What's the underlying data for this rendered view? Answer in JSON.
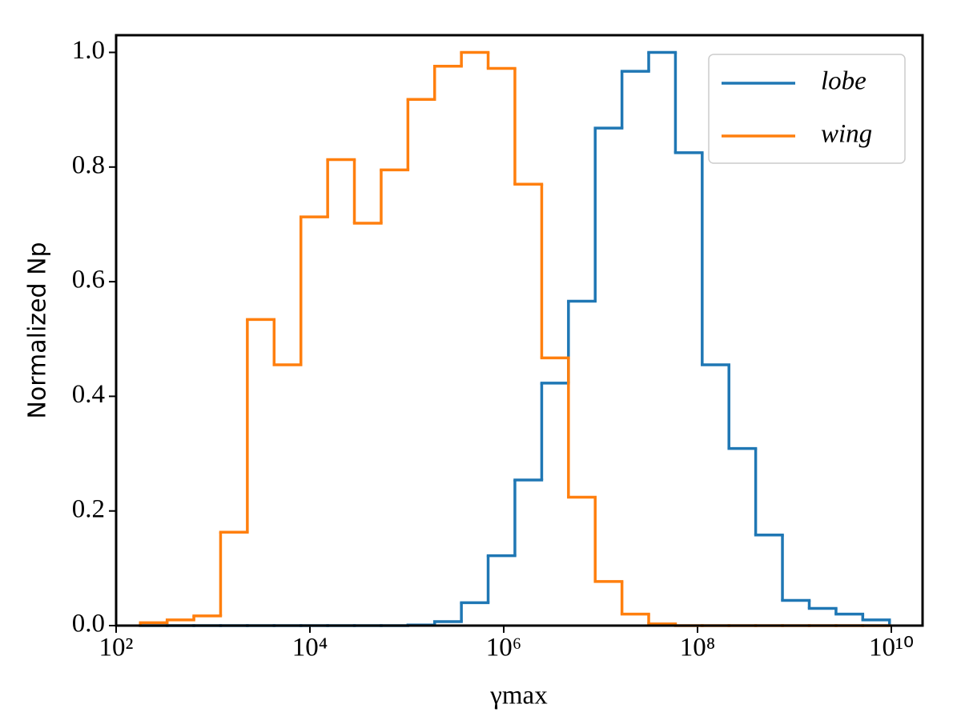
{
  "chart_data": {
    "type": "histogram",
    "xlabel": "γmax",
    "ylabel": "Normalized Np",
    "xscale": "log",
    "bins": [
      178,
      336,
      634,
      1197,
      2260,
      4270,
      8070,
      15240,
      28770,
      54330,
      102600,
      193600,
      365600,
      690400,
      1304000,
      2466000,
      4656000,
      8790000,
      16600000,
      31330000,
      59160000,
      111700000,
      210900000,
      398000000,
      752000000,
      1422000000,
      2685000000,
      5070000000,
      9570000000
    ],
    "series": [
      {
        "name": "lobe",
        "color": "#1f77b4",
        "values": [
          0,
          0,
          0,
          0,
          0,
          0,
          0,
          0,
          0,
          0,
          0.001,
          0.007,
          0.04,
          0.122,
          0.254,
          0.423,
          0.566,
          0.868,
          0.967,
          1.0,
          0.825,
          0.455,
          0.309,
          0.158,
          0.044,
          0.03,
          0.02,
          0.01
        ]
      },
      {
        "name": "wing",
        "color": "#ff7f0e",
        "values": [
          0.005,
          0.01,
          0.017,
          0.163,
          0.534,
          0.455,
          0.713,
          0.813,
          0.702,
          0.795,
          0.918,
          0.976,
          1.0,
          0.972,
          0.77,
          0.467,
          0.224,
          0.077,
          0.02,
          0.003,
          0,
          0,
          0,
          0,
          0,
          0,
          0,
          0
        ]
      }
    ],
    "xlim": [
      100,
      21000000000
    ],
    "xticks": [
      {
        "value": 100,
        "label": "10²"
      },
      {
        "value": 10000,
        "label": "10⁴"
      },
      {
        "value": 1000000,
        "label": "10⁶"
      },
      {
        "value": 100000000,
        "label": "10⁸"
      },
      {
        "value": 10000000000,
        "label": "10¹⁰"
      }
    ],
    "ylim": [
      0,
      1.03
    ],
    "yticks": [
      {
        "value": 0,
        "label": "0.0"
      },
      0.2,
      0.4,
      0.6,
      0.8,
      {
        "value": 1,
        "label": "1.0"
      }
    ],
    "grid": false,
    "legend": "upper right"
  }
}
